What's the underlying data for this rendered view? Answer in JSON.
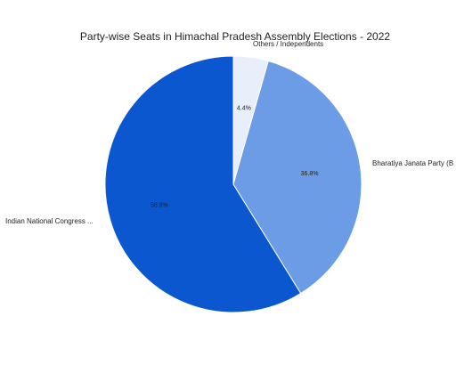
{
  "chart_data": {
    "type": "pie",
    "title": "Party-wise Seats in Himachal Pradesh Assembly Elections - 2022",
    "slices": [
      {
        "label": "Others / Independents",
        "value": 4.4,
        "pct_label": "4.4%",
        "color": "#e8eefa"
      },
      {
        "label": "Bharatiya Janata Party (B",
        "value": 36.8,
        "pct_label": "36.8%",
        "color": "#6d9ce6"
      },
      {
        "label": "Indian National Congress ...",
        "value": 58.8,
        "pct_label": "58.8%",
        "color": "#0b57d0"
      }
    ],
    "legend": "none",
    "start_angle": "top-clockwise"
  }
}
